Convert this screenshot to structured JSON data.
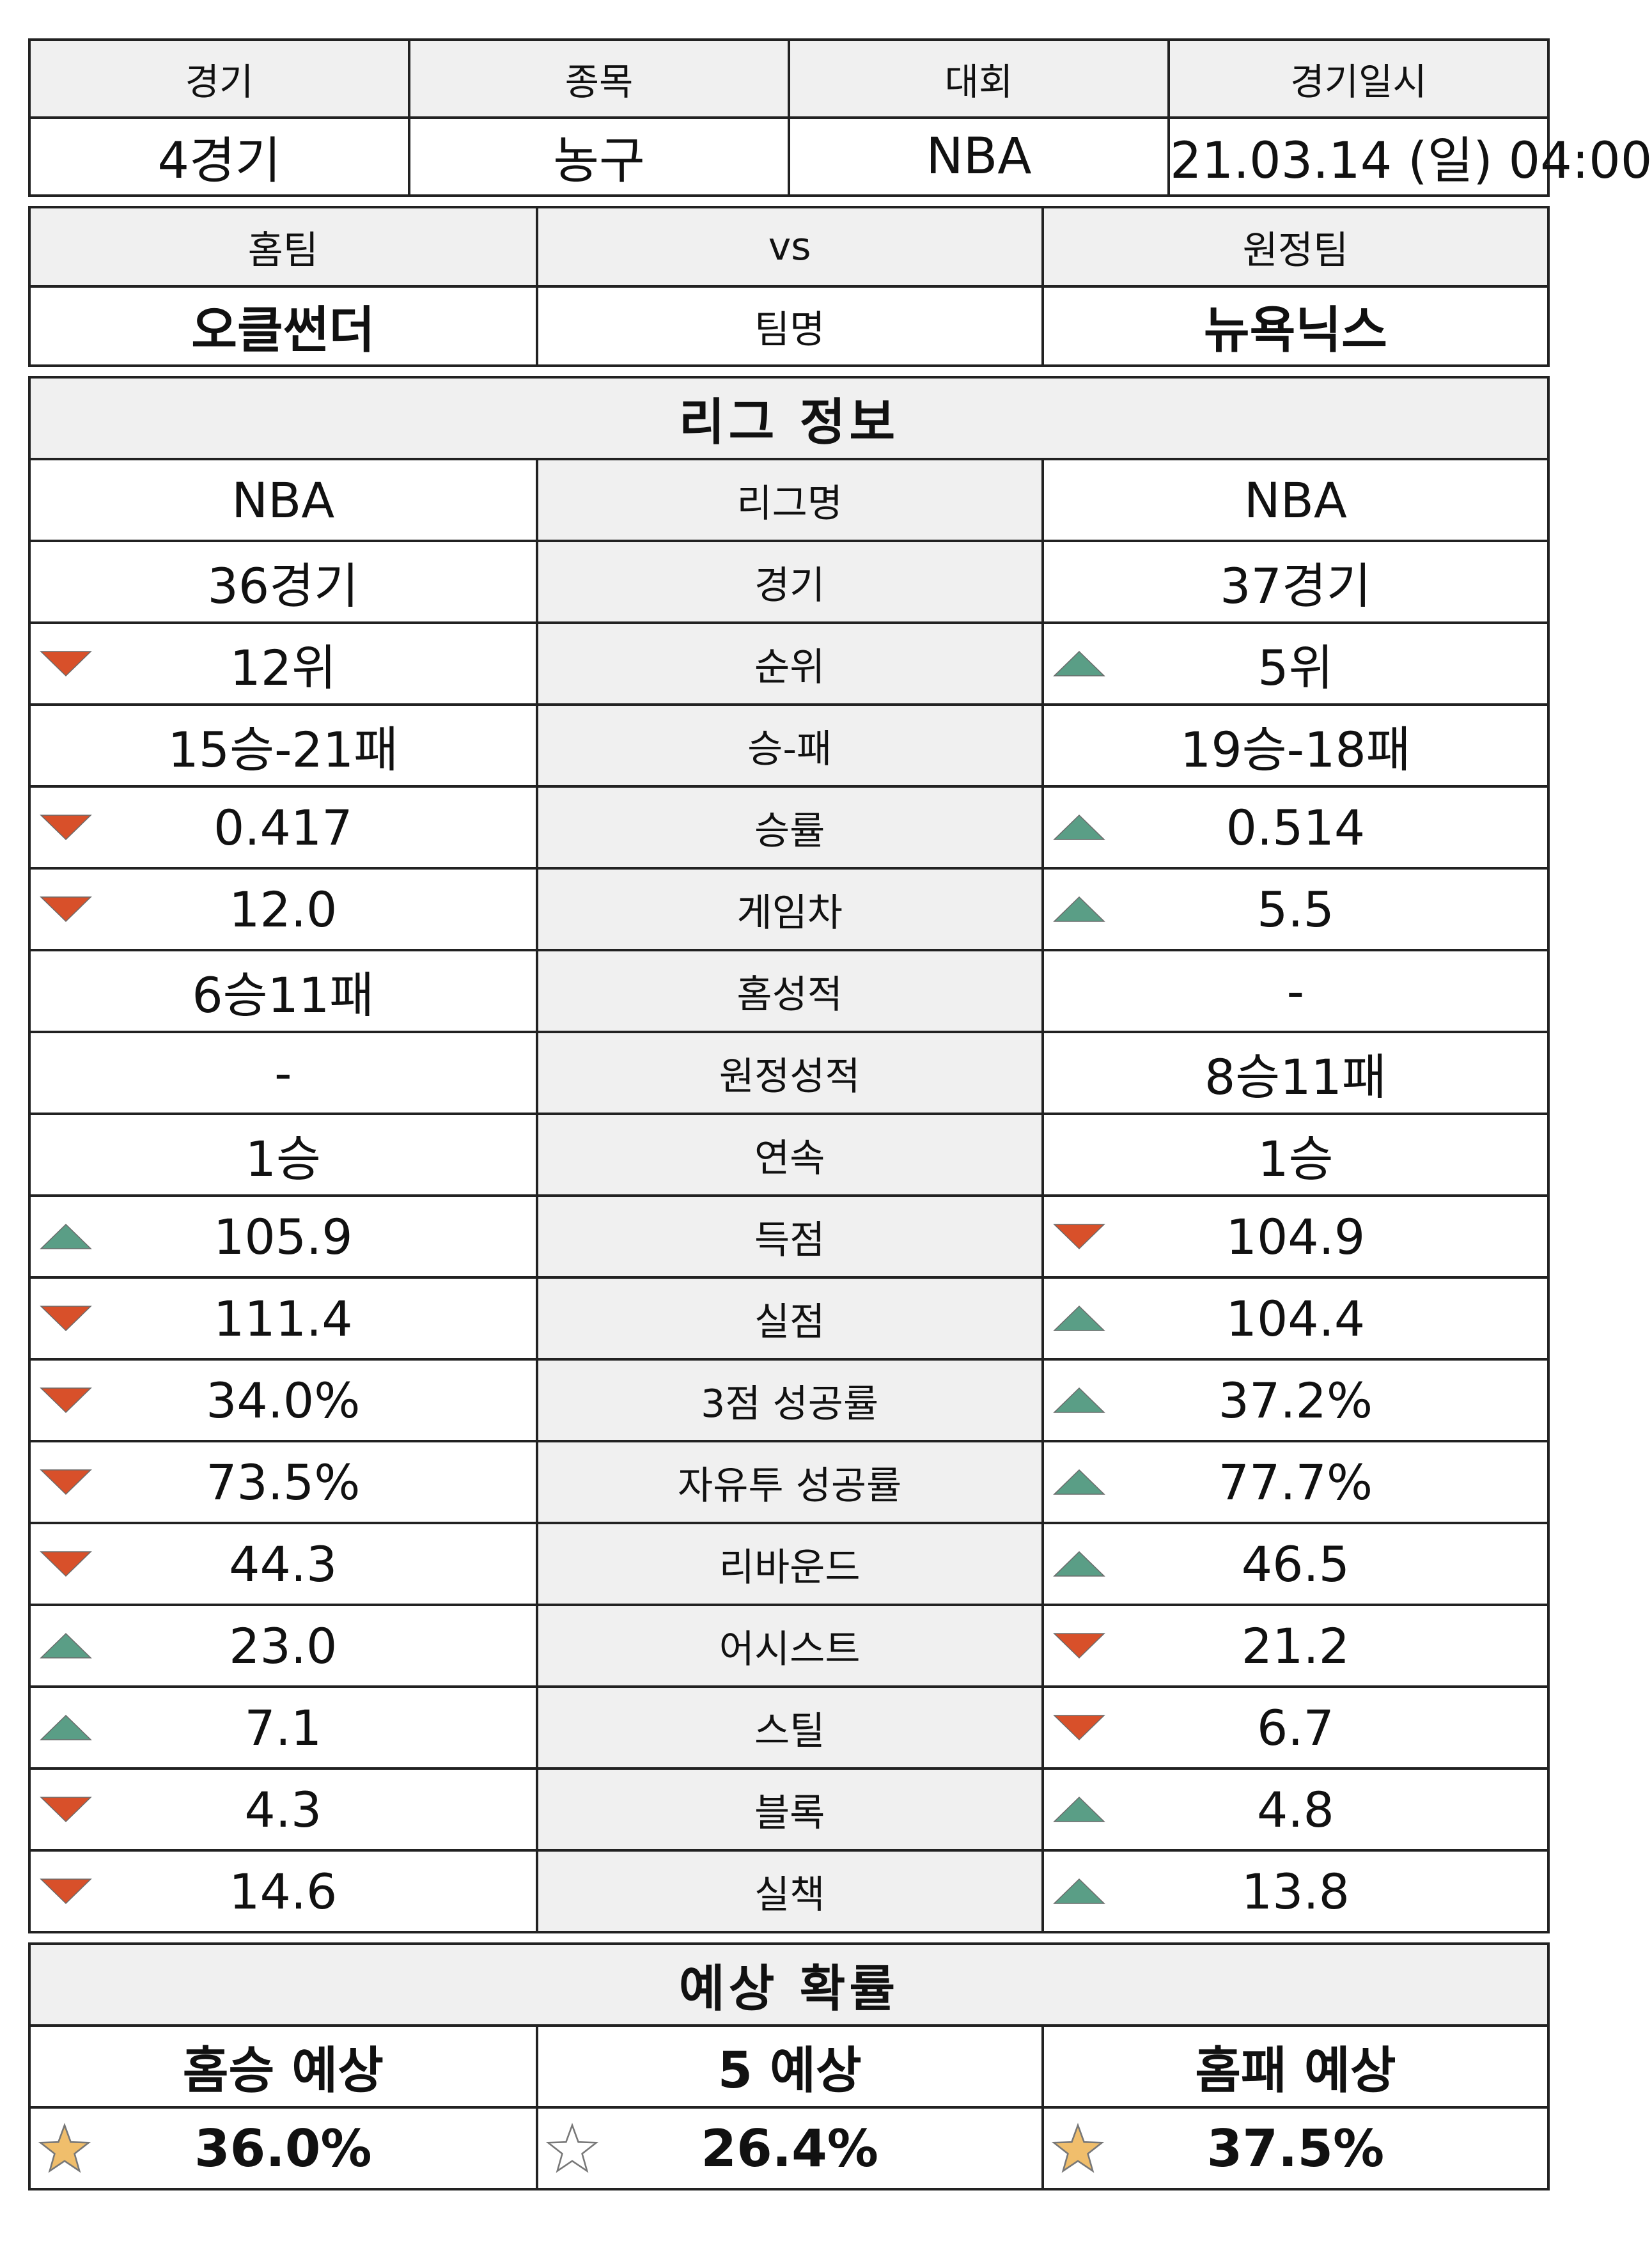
{
  "colors": {
    "up": "#5a9e86",
    "down": "#d8502a",
    "header_bg": "#f0f0f0",
    "star_filled": "#f0be6c",
    "star_empty": "#ffffff"
  },
  "match": {
    "headers": [
      "경기",
      "종목",
      "대회",
      "경기일시"
    ],
    "values": [
      "4경기",
      "농구",
      "NBA",
      "21.03.14 (일) 04:00"
    ]
  },
  "teams": {
    "home_label": "홈팀",
    "vs_label": "vs",
    "away_label": "원정팀",
    "home_name": "오클썬더",
    "mid_label": "팀명",
    "away_name": "뉴욕닉스"
  },
  "league": {
    "section_title": "리그 정보",
    "rows": [
      {
        "label": "리그명",
        "home": "NBA",
        "away": "NBA",
        "home_trend": "",
        "away_trend": ""
      },
      {
        "label": "경기",
        "home": "36경기",
        "away": "37경기",
        "home_trend": "",
        "away_trend": ""
      },
      {
        "label": "순위",
        "home": "12위",
        "away": "5위",
        "home_trend": "down",
        "away_trend": "up"
      },
      {
        "label": "승-패",
        "home": "15승-21패",
        "away": "19승-18패",
        "home_trend": "",
        "away_trend": ""
      },
      {
        "label": "승률",
        "home": "0.417",
        "away": "0.514",
        "home_trend": "down",
        "away_trend": "up"
      },
      {
        "label": "게임차",
        "home": "12.0",
        "away": "5.5",
        "home_trend": "down",
        "away_trend": "up"
      },
      {
        "label": "홈성적",
        "home": "6승11패",
        "away": "-",
        "home_trend": "",
        "away_trend": ""
      },
      {
        "label": "원정성적",
        "home": "-",
        "away": "8승11패",
        "home_trend": "",
        "away_trend": ""
      },
      {
        "label": "연속",
        "home": "1승",
        "away": "1승",
        "home_trend": "",
        "away_trend": ""
      },
      {
        "label": "득점",
        "home": "105.9",
        "away": "104.9",
        "home_trend": "up",
        "away_trend": "down"
      },
      {
        "label": "실점",
        "home": "111.4",
        "away": "104.4",
        "home_trend": "down",
        "away_trend": "up"
      },
      {
        "label": "3점 성공률",
        "home": "34.0%",
        "away": "37.2%",
        "home_trend": "down",
        "away_trend": "up"
      },
      {
        "label": "자유투 성공률",
        "home": "73.5%",
        "away": "77.7%",
        "home_trend": "down",
        "away_trend": "up"
      },
      {
        "label": "리바운드",
        "home": "44.3",
        "away": "46.5",
        "home_trend": "down",
        "away_trend": "up"
      },
      {
        "label": "어시스트",
        "home": "23.0",
        "away": "21.2",
        "home_trend": "up",
        "away_trend": "down"
      },
      {
        "label": "스틸",
        "home": "7.1",
        "away": "6.7",
        "home_trend": "up",
        "away_trend": "down"
      },
      {
        "label": "블록",
        "home": "4.3",
        "away": "4.8",
        "home_trend": "down",
        "away_trend": "up"
      },
      {
        "label": "실책",
        "home": "14.6",
        "away": "13.8",
        "home_trend": "down",
        "away_trend": "up"
      }
    ]
  },
  "prediction": {
    "section_title": "예상 확률",
    "labels": [
      "홈승 예상",
      "5 예상",
      "홈패 예상"
    ],
    "values": [
      "36.0%",
      "26.4%",
      "37.5%"
    ],
    "stars": [
      "filled",
      "empty",
      "filled"
    ]
  }
}
